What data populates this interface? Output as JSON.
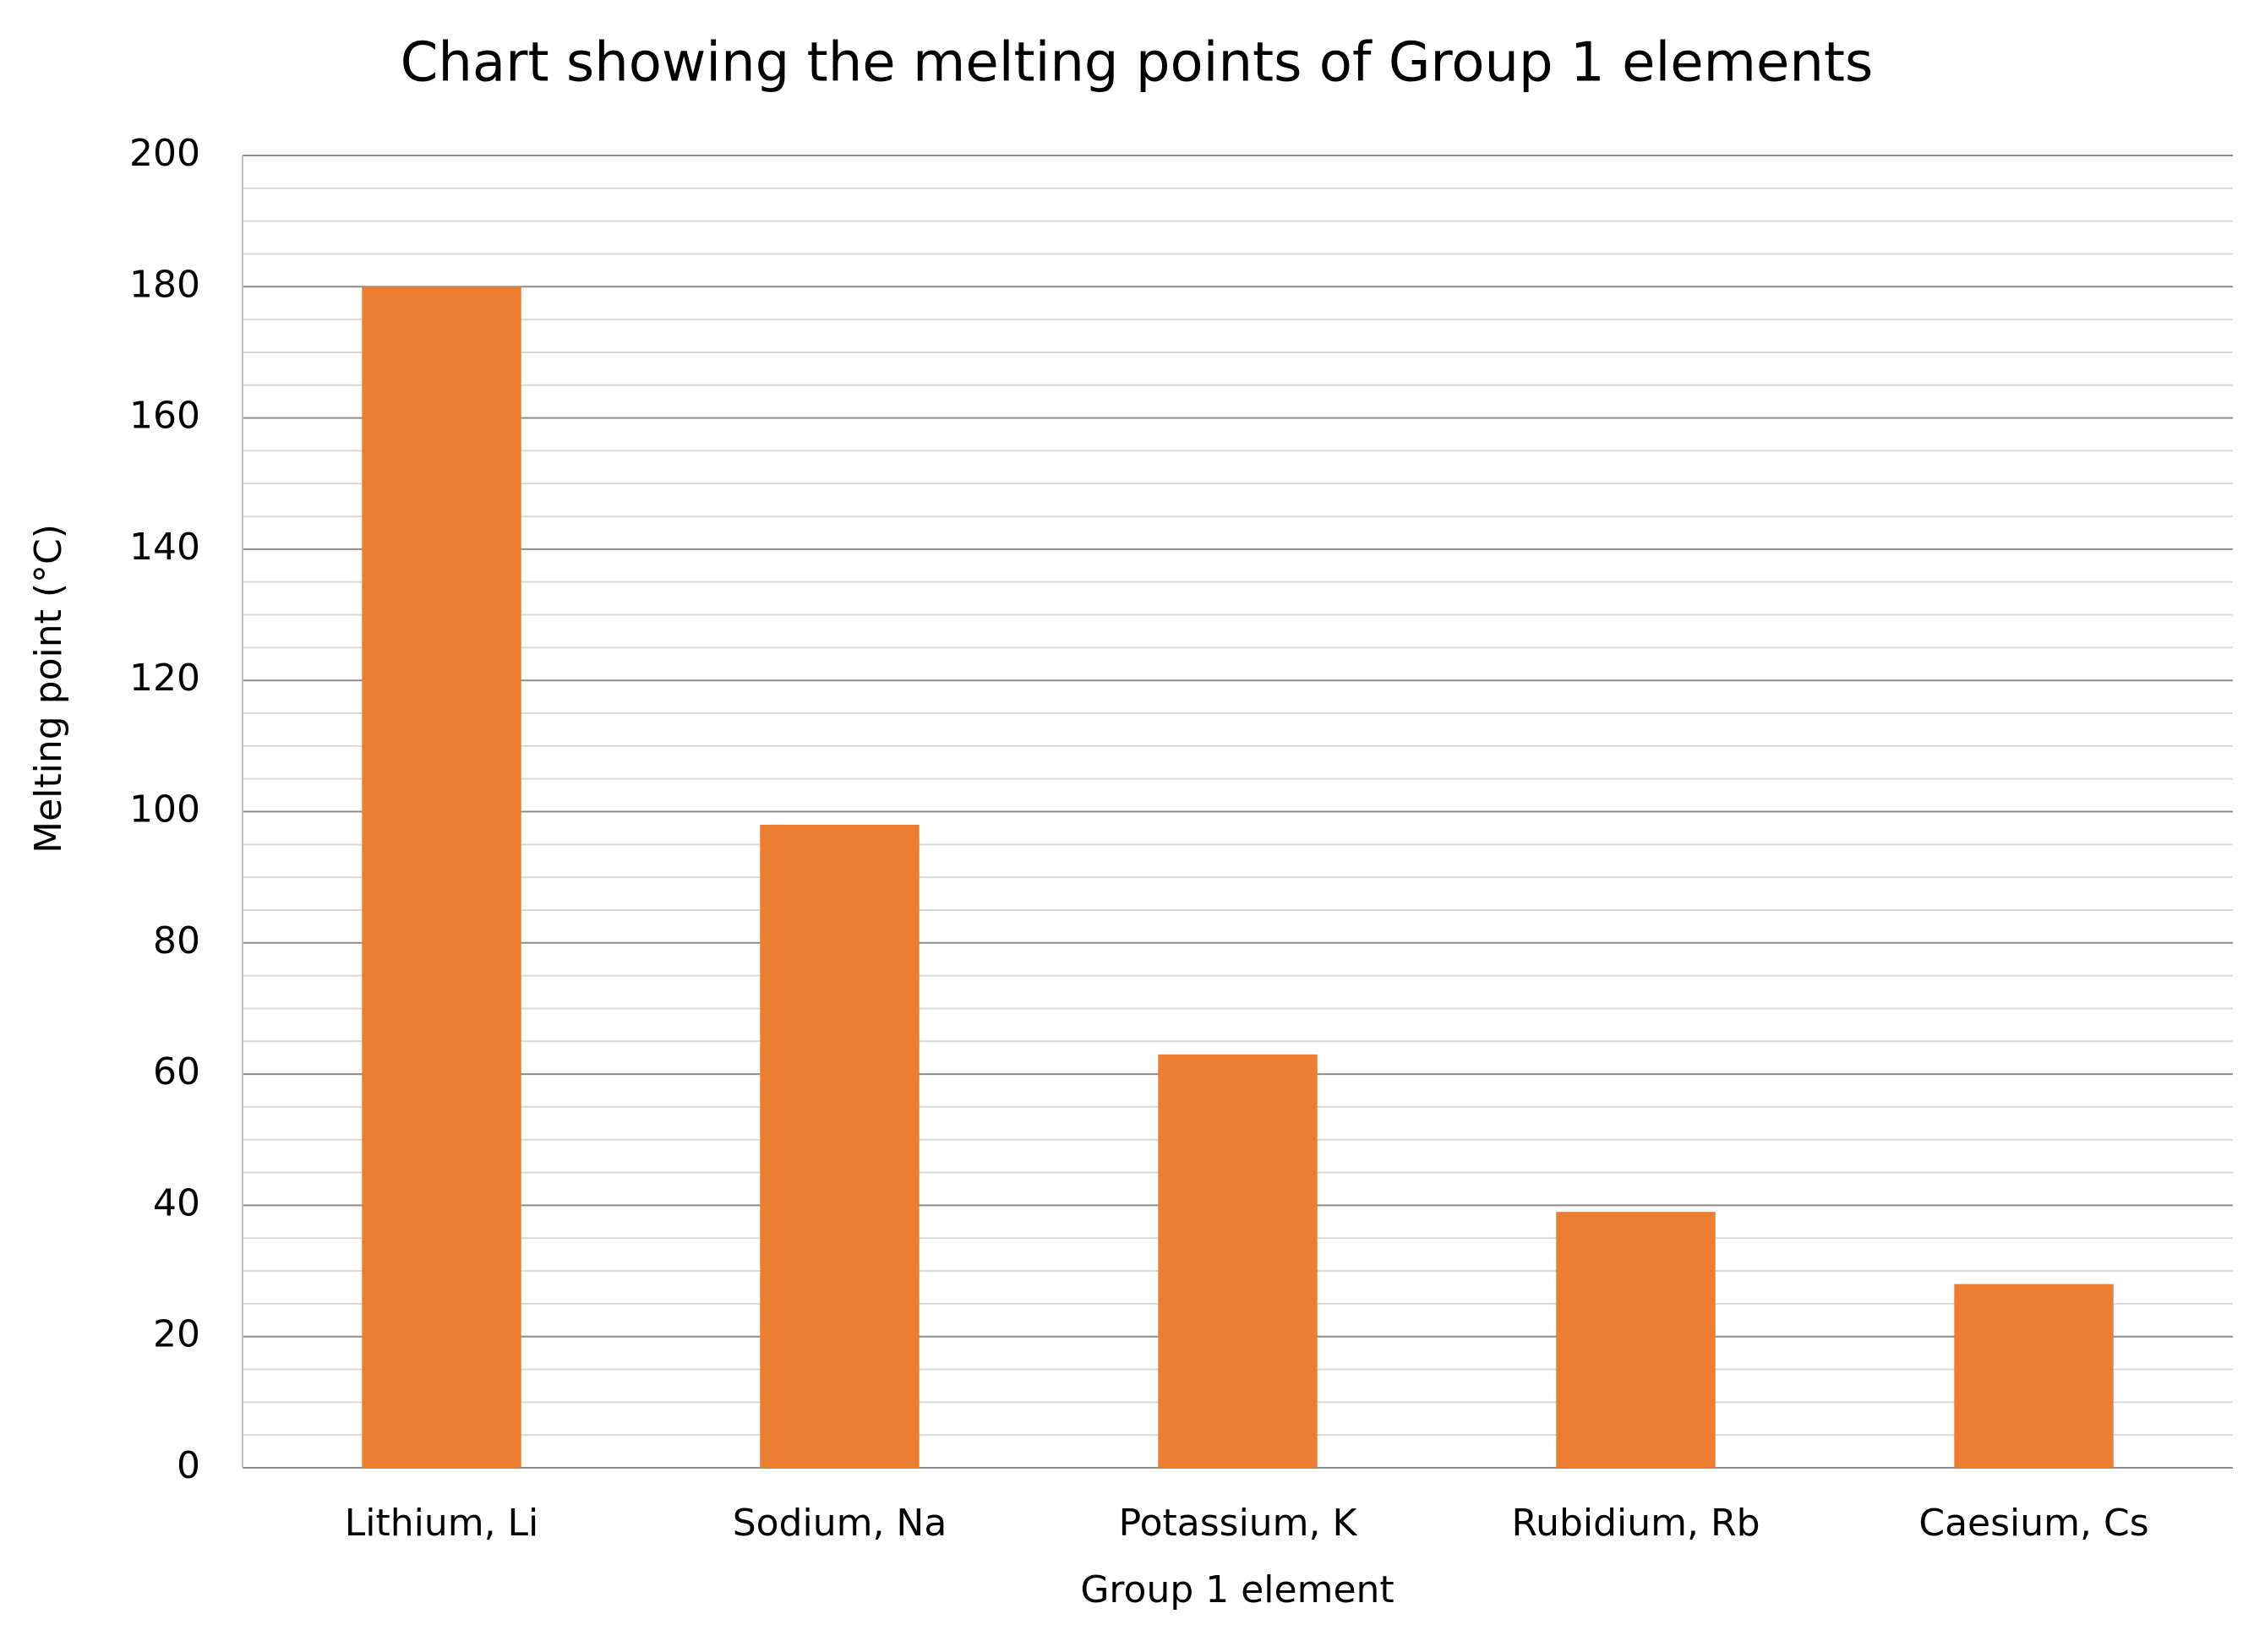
{
  "chart_data": {
    "type": "bar",
    "title": "Chart showing the melting points of Group 1 elements",
    "x_label": "Group 1 element",
    "y_label": "Melting point (°C)",
    "categories": [
      "Lithium, Li",
      "Sodium, Na",
      "Potassium, K",
      "Rubidium, Rb",
      "Caesium, Cs"
    ],
    "values": [
      180,
      98,
      63,
      39,
      28
    ],
    "color": "#ed7d31",
    "ylim": [
      0,
      200
    ],
    "yticks": [
      0,
      20,
      40,
      60,
      80,
      100,
      120,
      140,
      160,
      180,
      200
    ],
    "minor_yticks": [
      5,
      10,
      15,
      25,
      30,
      35,
      45,
      50,
      55,
      65,
      70,
      75,
      85,
      90,
      95,
      105,
      110,
      115,
      125,
      130,
      135,
      145,
      150,
      155,
      165,
      170,
      175,
      185,
      190,
      195
    ],
    "grid": true
  }
}
